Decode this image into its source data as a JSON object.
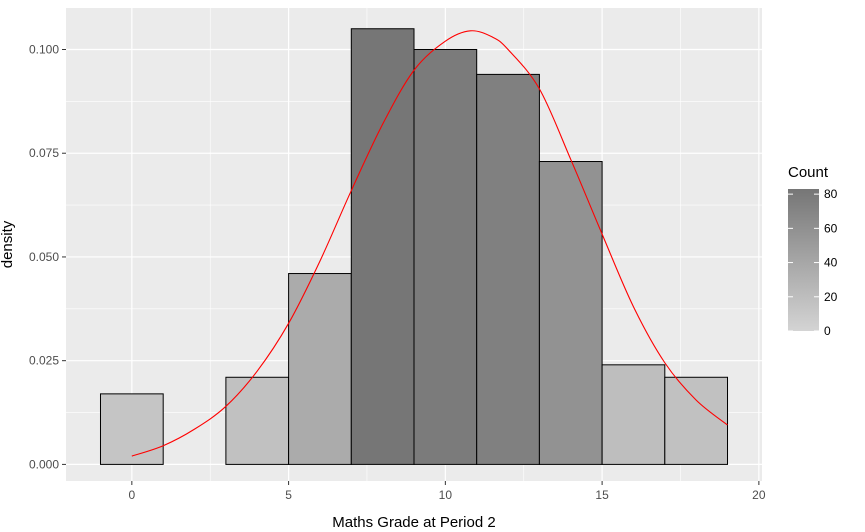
{
  "chart_data": {
    "type": "bar",
    "subtype": "histogram-with-density-line",
    "title": "",
    "xlabel": "Maths Grade at Period 2",
    "ylabel": "density",
    "xlim": [
      -2.1,
      20.1
    ],
    "ylim": [
      -0.004,
      0.11
    ],
    "x_ticks": [
      0,
      5,
      10,
      15,
      20
    ],
    "y_ticks": [
      0.0,
      0.025,
      0.05,
      0.075,
      0.1
    ],
    "y_tick_labels": [
      "0.000",
      "0.025",
      "0.050",
      "0.075",
      "0.100"
    ],
    "x_tick_labels": [
      "0",
      "5",
      "10",
      "15",
      "20"
    ],
    "grid": true,
    "bins": [
      {
        "x_start": -1,
        "x_end": 1,
        "density": 0.017,
        "count": 13
      },
      {
        "x_start": 1,
        "x_end": 3,
        "density": 0.0,
        "count": 0
      },
      {
        "x_start": 3,
        "x_end": 5,
        "density": 0.021,
        "count": 17
      },
      {
        "x_start": 5,
        "x_end": 7,
        "density": 0.046,
        "count": 36
      },
      {
        "x_start": 7,
        "x_end": 9,
        "density": 0.105,
        "count": 83
      },
      {
        "x_start": 9,
        "x_end": 11,
        "density": 0.1,
        "count": 79
      },
      {
        "x_start": 11,
        "x_end": 13,
        "density": 0.094,
        "count": 74
      },
      {
        "x_start": 13,
        "x_end": 15,
        "density": 0.073,
        "count": 58
      },
      {
        "x_start": 15,
        "x_end": 17,
        "density": 0.024,
        "count": 19
      },
      {
        "x_start": 17,
        "x_end": 19,
        "density": 0.021,
        "count": 17
      }
    ],
    "density_curve": {
      "color": "#ff0000",
      "x": [
        0,
        1,
        2,
        3,
        4,
        5,
        6,
        7,
        8,
        9,
        10,
        10.8,
        11.5,
        12,
        13,
        14,
        15,
        16,
        17,
        18,
        19
      ],
      "y": [
        0.002,
        0.0045,
        0.0085,
        0.014,
        0.0225,
        0.034,
        0.049,
        0.066,
        0.082,
        0.095,
        0.102,
        0.1045,
        0.103,
        0.1,
        0.0905,
        0.0735,
        0.0555,
        0.038,
        0.0245,
        0.0155,
        0.0095
      ]
    },
    "legend": {
      "title": "Count",
      "placement": "right",
      "type": "gradient",
      "ticks": [
        0,
        20,
        40,
        60,
        80
      ],
      "tick_labels": [
        "0",
        "20",
        "40",
        "60",
        "80"
      ],
      "range": [
        0,
        83
      ],
      "color_low": "#d4d4d4",
      "color_high": "#767676"
    },
    "colors": {
      "panel_background": "#ebebeb",
      "grid_major": "#ffffff",
      "bar_outline": "#000000"
    }
  }
}
